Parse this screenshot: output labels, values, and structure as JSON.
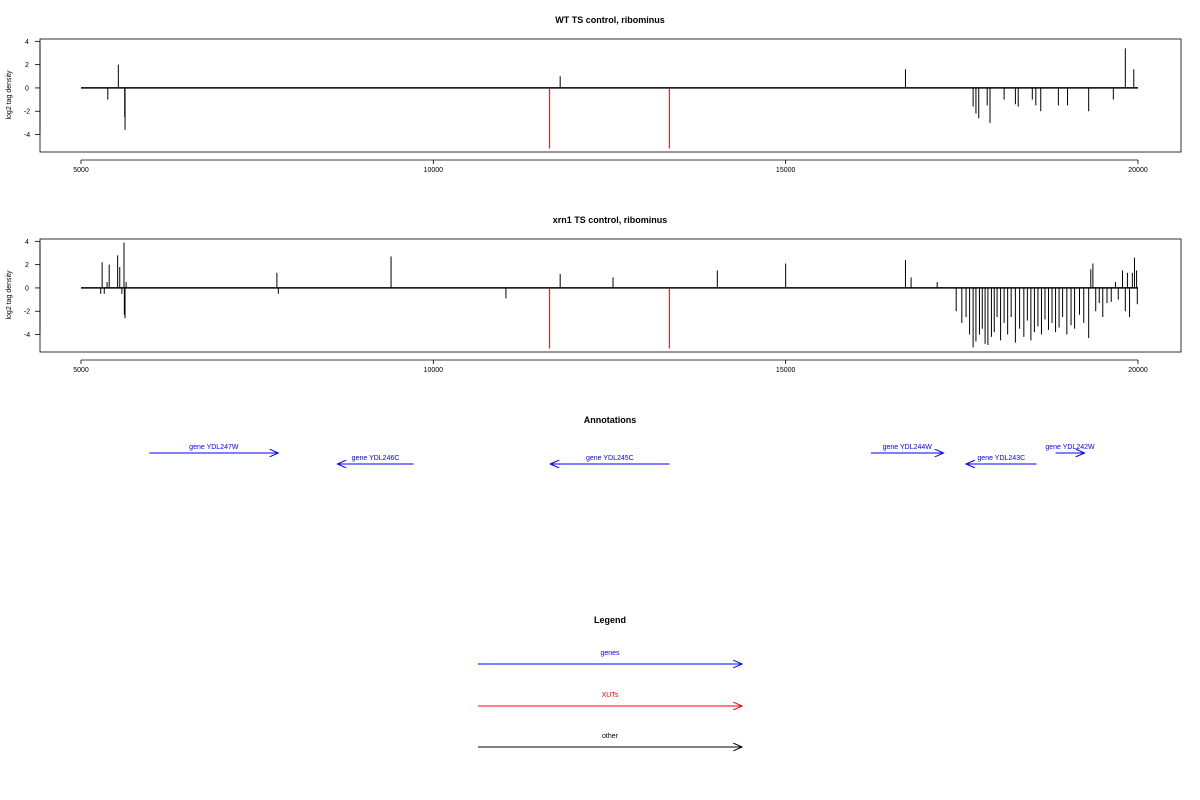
{
  "colors": {
    "gene": "#0000ff",
    "xut": "#ff0000",
    "other": "#000000",
    "axis": "#000000"
  },
  "chart_data": [
    {
      "type": "bar",
      "title": "WT TS control, ribominus",
      "ylabel": "log2 tag density",
      "xlim": [
        5000,
        20000
      ],
      "ylim": [
        -5.5,
        4.2
      ],
      "xticks": [
        5000,
        10000,
        15000,
        20000
      ],
      "yticks": [
        4,
        2,
        0,
        -2,
        -4
      ],
      "grid": false,
      "bars": [
        {
          "x": 5380,
          "y": -1.0
        },
        {
          "x": 5530,
          "y": 2.0
        },
        {
          "x": 5620,
          "y": -2.5
        },
        {
          "x": 5625,
          "y": -3.6
        },
        {
          "x": 11800,
          "y": 1.0
        },
        {
          "x": 16700,
          "y": 1.6
        },
        {
          "x": 17660,
          "y": -1.6
        },
        {
          "x": 17700,
          "y": -2.2
        },
        {
          "x": 17740,
          "y": -2.6
        },
        {
          "x": 17860,
          "y": -1.5
        },
        {
          "x": 17900,
          "y": -3.0
        },
        {
          "x": 18100,
          "y": -1.0
        },
        {
          "x": 18260,
          "y": -1.4
        },
        {
          "x": 18300,
          "y": -1.6
        },
        {
          "x": 18500,
          "y": -1.0
        },
        {
          "x": 18550,
          "y": -1.5
        },
        {
          "x": 18620,
          "y": -2.0
        },
        {
          "x": 18870,
          "y": -1.5
        },
        {
          "x": 19000,
          "y": -1.5
        },
        {
          "x": 19300,
          "y": -2.0
        },
        {
          "x": 19650,
          "y": -1.0
        },
        {
          "x": 19820,
          "y": 3.4
        },
        {
          "x": 19940,
          "y": 1.6
        }
      ],
      "xut_marks": [
        {
          "x": 11650,
          "y": -5.2
        },
        {
          "x": 13350,
          "y": -5.2
        }
      ]
    },
    {
      "type": "bar",
      "title": "xrn1 TS control, ribominus",
      "ylabel": "log2 tag density",
      "xlim": [
        5000,
        20000
      ],
      "ylim": [
        -5.5,
        4.2
      ],
      "xticks": [
        5000,
        10000,
        15000,
        20000
      ],
      "yticks": [
        4,
        2,
        0,
        -2,
        -4
      ],
      "grid": false,
      "bars": [
        {
          "x": 5280,
          "y": -0.5
        },
        {
          "x": 5300,
          "y": 2.2
        },
        {
          "x": 5330,
          "y": -0.5
        },
        {
          "x": 5370,
          "y": 0.5
        },
        {
          "x": 5400,
          "y": 2.0
        },
        {
          "x": 5520,
          "y": 2.8
        },
        {
          "x": 5550,
          "y": 1.8
        },
        {
          "x": 5580,
          "y": -0.5
        },
        {
          "x": 5610,
          "y": 3.9
        },
        {
          "x": 5615,
          "y": -2.3
        },
        {
          "x": 5625,
          "y": -2.6
        },
        {
          "x": 5640,
          "y": 0.5
        },
        {
          "x": 7780,
          "y": 1.3
        },
        {
          "x": 7800,
          "y": -0.5
        },
        {
          "x": 9400,
          "y": 2.7
        },
        {
          "x": 11030,
          "y": -0.9
        },
        {
          "x": 11800,
          "y": 1.2
        },
        {
          "x": 12550,
          "y": 0.9
        },
        {
          "x": 14030,
          "y": 1.5
        },
        {
          "x": 15000,
          "y": 2.1
        },
        {
          "x": 16700,
          "y": 2.4
        },
        {
          "x": 16780,
          "y": 0.9
        },
        {
          "x": 17150,
          "y": 0.5
        },
        {
          "x": 17420,
          "y": -2.0
        },
        {
          "x": 17500,
          "y": -3.0
        },
        {
          "x": 17560,
          "y": -2.5
        },
        {
          "x": 17610,
          "y": -4.0
        },
        {
          "x": 17660,
          "y": -5.1
        },
        {
          "x": 17700,
          "y": -4.6
        },
        {
          "x": 17750,
          "y": -4.0
        },
        {
          "x": 17790,
          "y": -3.5
        },
        {
          "x": 17830,
          "y": -4.8
        },
        {
          "x": 17870,
          "y": -4.9
        },
        {
          "x": 17920,
          "y": -4.2
        },
        {
          "x": 17960,
          "y": -3.8
        },
        {
          "x": 18000,
          "y": -2.5
        },
        {
          "x": 18050,
          "y": -4.5
        },
        {
          "x": 18100,
          "y": -3.0
        },
        {
          "x": 18150,
          "y": -4.0
        },
        {
          "x": 18200,
          "y": -2.5
        },
        {
          "x": 18260,
          "y": -4.7
        },
        {
          "x": 18320,
          "y": -3.5
        },
        {
          "x": 18380,
          "y": -4.2
        },
        {
          "x": 18430,
          "y": -2.8
        },
        {
          "x": 18480,
          "y": -4.5
        },
        {
          "x": 18530,
          "y": -3.8
        },
        {
          "x": 18580,
          "y": -3.3
        },
        {
          "x": 18630,
          "y": -4.0
        },
        {
          "x": 18680,
          "y": -2.7
        },
        {
          "x": 18730,
          "y": -3.6
        },
        {
          "x": 18780,
          "y": -3.0
        },
        {
          "x": 18830,
          "y": -3.8
        },
        {
          "x": 18880,
          "y": -3.4
        },
        {
          "x": 18930,
          "y": -2.5
        },
        {
          "x": 18990,
          "y": -4.0
        },
        {
          "x": 19050,
          "y": -3.2
        },
        {
          "x": 19100,
          "y": -3.5
        },
        {
          "x": 19170,
          "y": -2.3
        },
        {
          "x": 19230,
          "y": -3.0
        },
        {
          "x": 19300,
          "y": -4.3
        },
        {
          "x": 19330,
          "y": 1.6
        },
        {
          "x": 19360,
          "y": 2.1
        },
        {
          "x": 19400,
          "y": -2.0
        },
        {
          "x": 19450,
          "y": -1.3
        },
        {
          "x": 19500,
          "y": -2.5
        },
        {
          "x": 19560,
          "y": -1.3
        },
        {
          "x": 19620,
          "y": -1.2
        },
        {
          "x": 19680,
          "y": 0.5
        },
        {
          "x": 19720,
          "y": -1.0
        },
        {
          "x": 19780,
          "y": 1.5
        },
        {
          "x": 19820,
          "y": -2.0
        },
        {
          "x": 19850,
          "y": 1.3
        },
        {
          "x": 19880,
          "y": -2.5
        },
        {
          "x": 19920,
          "y": 1.3
        },
        {
          "x": 19950,
          "y": 2.6
        },
        {
          "x": 19980,
          "y": 1.5
        },
        {
          "x": 19990,
          "y": -1.4
        }
      ],
      "xut_marks": [
        {
          "x": 11650,
          "y": -5.2
        },
        {
          "x": 13350,
          "y": -5.2
        }
      ]
    }
  ],
  "annotations": {
    "title": "Annotations",
    "xlim": [
      5000,
      20000
    ],
    "features": [
      {
        "label": "gene YDL247W",
        "start": 5970,
        "end": 7800,
        "strand": "+",
        "row": 0,
        "kind": "gene"
      },
      {
        "label": "gene YDL246C",
        "start": 8640,
        "end": 9720,
        "strand": "-",
        "row": 1,
        "kind": "gene"
      },
      {
        "label": "gene YDL245C",
        "start": 11660,
        "end": 13350,
        "strand": "-",
        "row": 1,
        "kind": "gene"
      },
      {
        "label": "gene YDL244W",
        "start": 16210,
        "end": 17240,
        "strand": "+",
        "row": 0,
        "kind": "gene"
      },
      {
        "label": "gene YDL243C",
        "start": 17560,
        "end": 18560,
        "strand": "-",
        "row": 1,
        "kind": "gene"
      },
      {
        "label": "gene YDL242W",
        "start": 18830,
        "end": 19240,
        "strand": "+",
        "row": 0,
        "kind": "gene"
      }
    ]
  },
  "legend": {
    "title": "Legend",
    "entries": [
      {
        "label": "genes",
        "kind": "gene"
      },
      {
        "label": "XUTs",
        "kind": "xut"
      },
      {
        "label": "other",
        "kind": "other"
      }
    ]
  }
}
